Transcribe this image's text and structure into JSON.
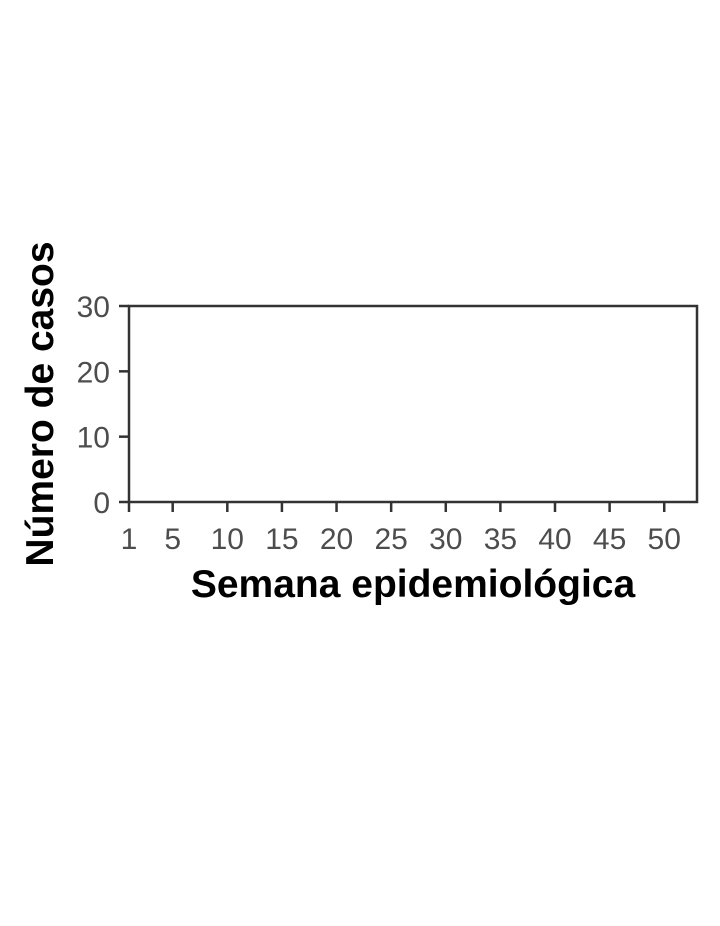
{
  "chart_data": {
    "type": "bar",
    "title": "",
    "xlabel": "Semana epidemiológica",
    "ylabel": "Número de casos",
    "x_ticks": [
      1,
      5,
      10,
      15,
      20,
      25,
      30,
      35,
      40,
      45,
      50
    ],
    "y_ticks": [
      0,
      10,
      20,
      30
    ],
    "xlim": [
      1,
      53
    ],
    "ylim": [
      0,
      30
    ],
    "series": [],
    "grid": false,
    "legend": "none",
    "colors": {
      "axis": "#333333",
      "tick_text": "#4d4d4d",
      "title_text": "#000000"
    }
  }
}
